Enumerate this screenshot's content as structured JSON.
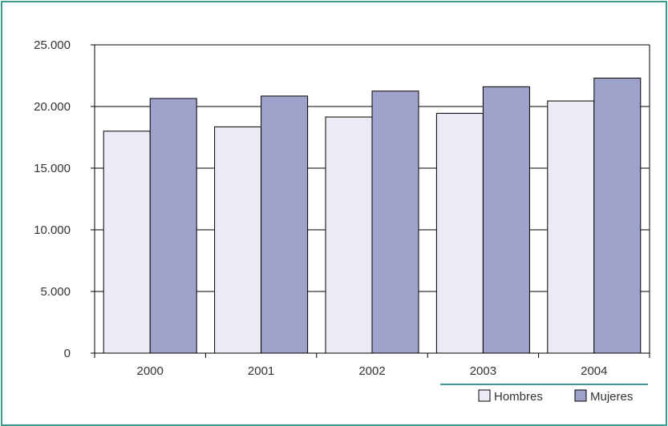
{
  "chart_data": {
    "type": "bar",
    "categories": [
      "2000",
      "2001",
      "2002",
      "2003",
      "2004"
    ],
    "series": [
      {
        "name": "Hombres",
        "values": [
          18000,
          18350,
          19150,
          19450,
          20450
        ]
      },
      {
        "name": "Mujeres",
        "values": [
          20650,
          20850,
          21250,
          21600,
          22300
        ]
      }
    ],
    "title": "",
    "xlabel": "",
    "ylabel": "",
    "ylim": [
      0,
      25000
    ],
    "yticks": [
      0,
      5000,
      10000,
      15000,
      20000,
      25000
    ],
    "ytick_labels": [
      "0",
      "5.000",
      "10.000",
      "15.000",
      "20.000",
      "25.000"
    ],
    "grid": true,
    "legend": "bottom-right",
    "colors": {
      "Hombres": "#ecebf5",
      "Mujeres": "#9fa3cc",
      "frame": "#3a9c91",
      "axis": "#000000"
    }
  }
}
